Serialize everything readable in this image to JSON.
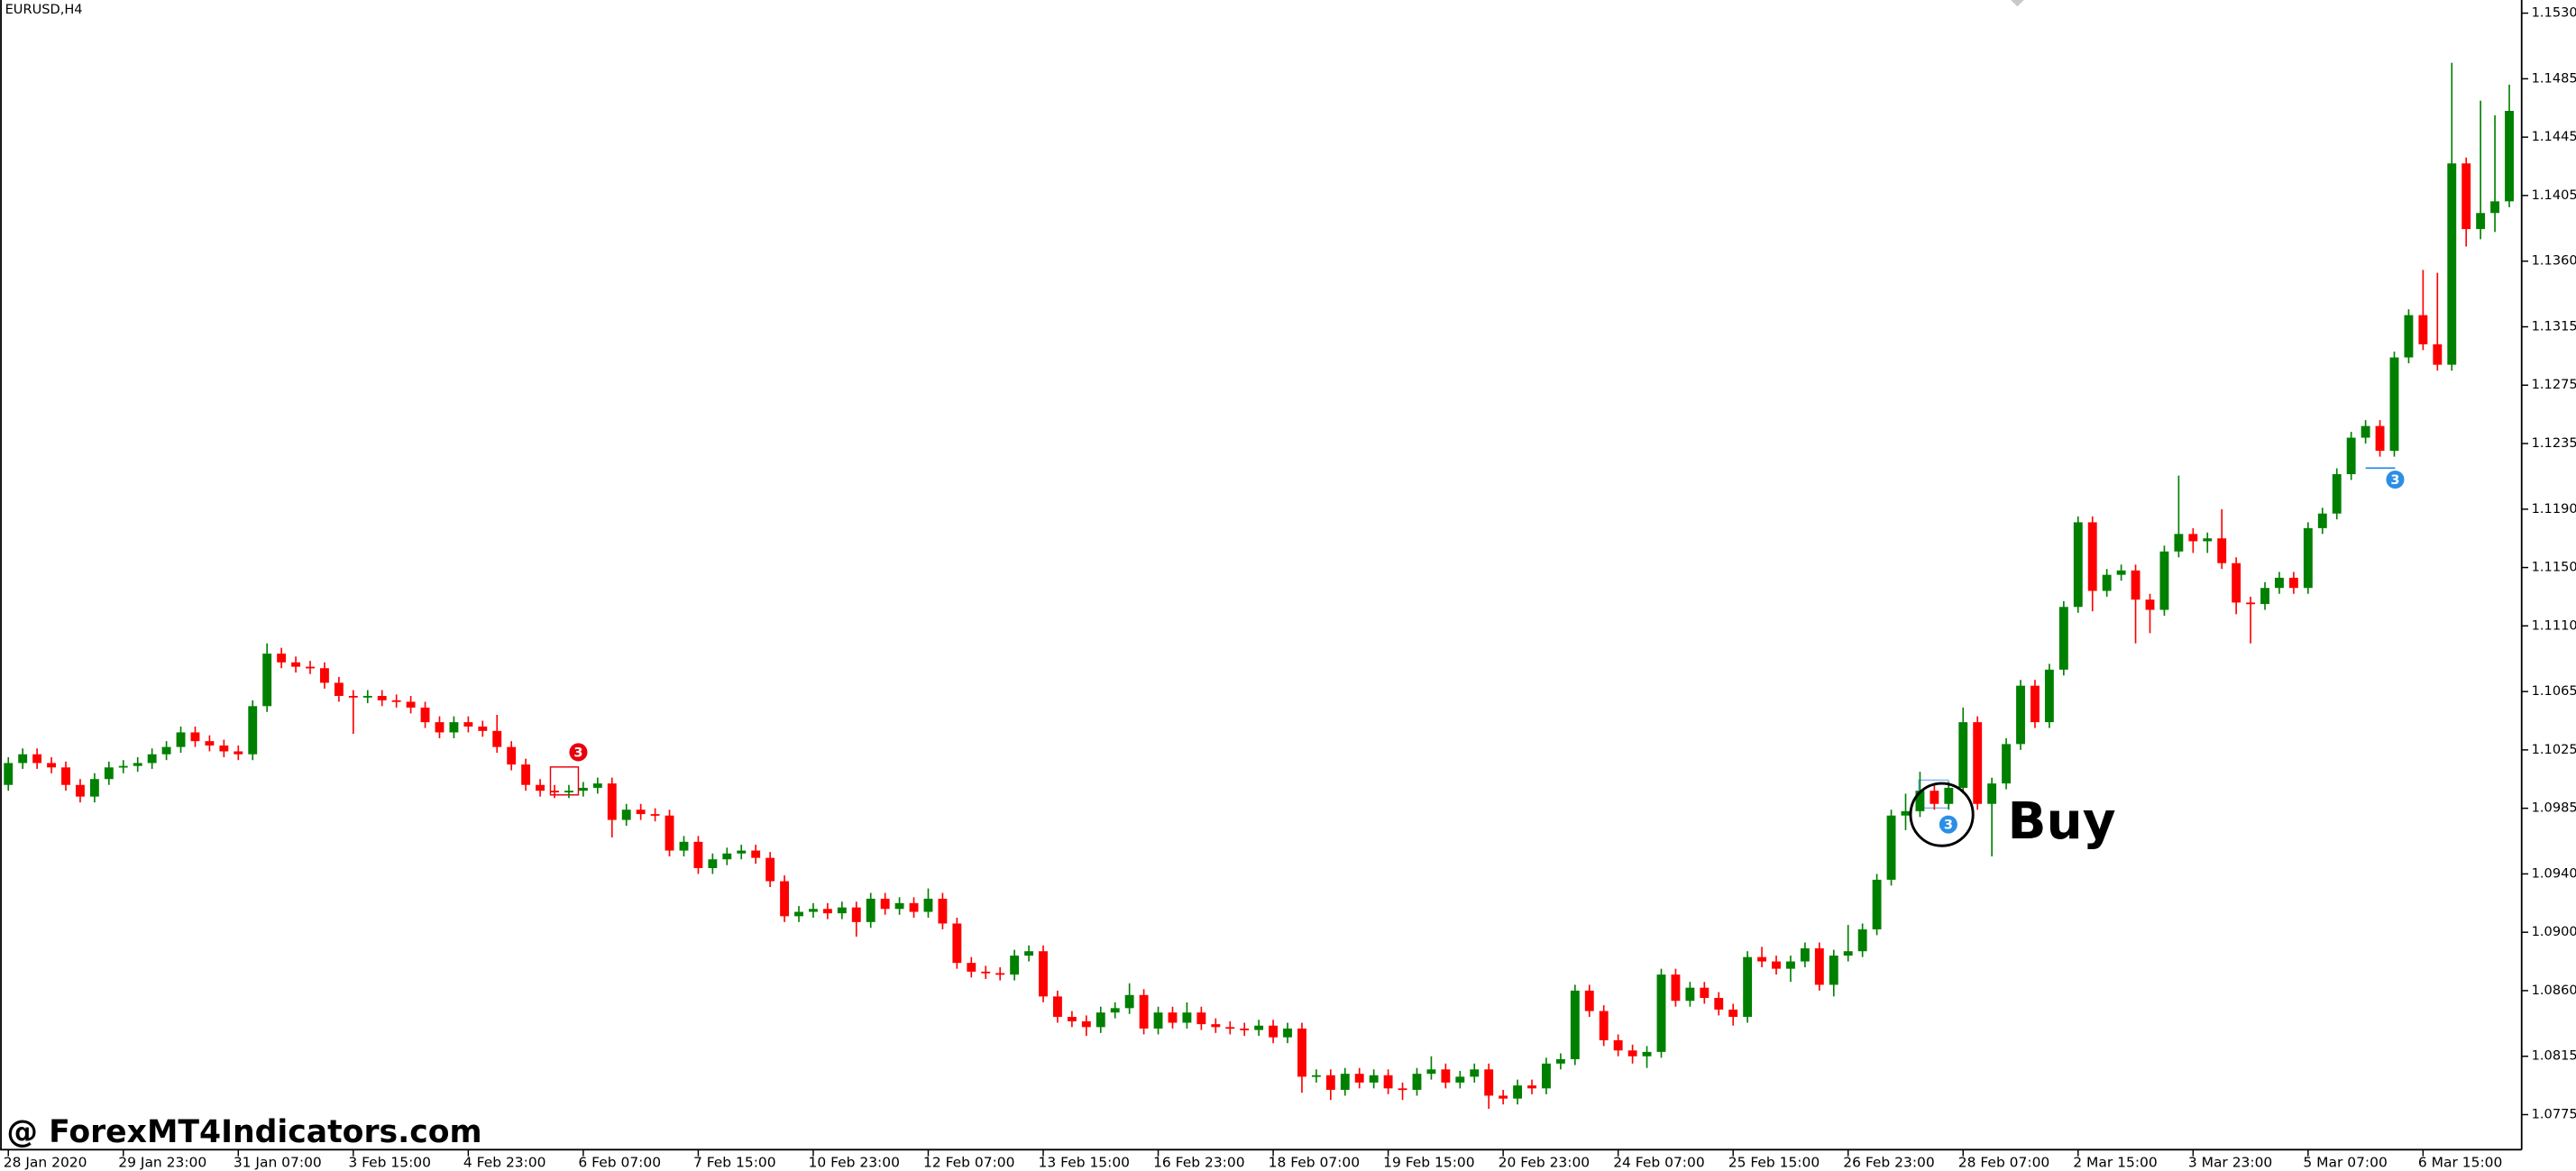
{
  "chart_data": {
    "type": "candlestick",
    "title": "EURUSD,H4",
    "open": [
      1.1001,
      1.1016,
      1.1022,
      1.1016,
      1.1013,
      1.1001,
      1.0993,
      1.1005,
      1.1013,
      1.1014,
      1.1016,
      1.1022,
      1.1027,
      1.1037,
      1.1031,
      1.1028,
      1.1024,
      1.1022,
      1.1055,
      1.1091,
      1.1085,
      1.1082,
      1.1081,
      1.1071,
      1.1062,
      1.1061,
      1.1062,
      1.1059,
      1.1058,
      1.1054,
      1.1044,
      1.1037,
      1.1044,
      1.1041,
      1.1038,
      1.1027,
      1.1015,
      1.1001,
      1.0997,
      1.0996,
      1.0997,
      1.0999,
      1.1002,
      1.0977,
      1.0984,
      1.0981,
      1.098,
      1.0956,
      1.0962,
      1.0944,
      1.095,
      1.0954,
      1.0956,
      1.0951,
      1.0935,
      1.0911,
      1.0914,
      1.0916,
      1.0913,
      1.0917,
      1.0907,
      1.0923,
      1.0916,
      1.092,
      1.0914,
      1.0923,
      1.0906,
      1.0879,
      1.0873,
      1.0872,
      1.0871,
      1.0884,
      1.0887,
      1.0856,
      1.0842,
      1.0839,
      1.0835,
      1.0845,
      1.0848,
      1.0857,
      1.0834,
      1.0845,
      1.0838,
      1.0845,
      1.0837,
      1.0835,
      1.0834,
      1.0833,
      1.0836,
      1.0828,
      1.0834,
      1.0801,
      1.0802,
      1.0792,
      1.0803,
      1.0797,
      1.0802,
      1.0793,
      1.0792,
      1.0803,
      1.0806,
      1.0797,
      1.0801,
      1.0806,
      1.0788,
      1.0786,
      1.0795,
      1.0793,
      1.081,
      1.0813,
      1.086,
      1.0846,
      1.0826,
      1.0819,
      1.0815,
      1.0818,
      1.0871,
      1.0853,
      1.0862,
      1.0855,
      1.0847,
      1.0842,
      1.0883,
      1.088,
      1.0875,
      1.088,
      1.0889,
      1.0864,
      1.0884,
      1.0887,
      1.0902,
      1.0936,
      1.098,
      1.0983,
      1.0997,
      1.0988,
      1.0999,
      1.1044,
      1.0988,
      1.1002,
      1.1029,
      1.1069,
      1.1044,
      1.108,
      1.1123,
      1.1181,
      1.1134,
      1.1145,
      1.1148,
      1.1128,
      1.1121,
      1.1161,
      1.1173,
      1.1168,
      1.117,
      1.1153,
      1.1126,
      1.1125,
      1.1136,
      1.1143,
      1.1136,
      1.1177,
      1.1187,
      1.1214,
      1.1239,
      1.1247,
      1.123,
      1.1294,
      1.1323,
      1.1303,
      1.1289,
      1.1427,
      1.1382,
      1.1393,
      1.1401
    ],
    "high": [
      1.102,
      1.1026,
      1.1026,
      1.102,
      1.1017,
      1.1005,
      1.1009,
      1.1017,
      1.1018,
      1.102,
      1.1026,
      1.1031,
      1.1041,
      1.1041,
      1.1035,
      1.1032,
      1.1028,
      1.1059,
      1.1098,
      1.1095,
      1.1089,
      1.1086,
      1.1085,
      1.1075,
      1.1066,
      1.1066,
      1.1066,
      1.1063,
      1.1062,
      1.1058,
      1.1048,
      1.1048,
      1.1048,
      1.1045,
      1.1049,
      1.1031,
      1.1019,
      1.1005,
      1.1001,
      1.1001,
      1.1003,
      1.1006,
      1.1006,
      1.0988,
      1.0988,
      1.0985,
      1.0984,
      1.0966,
      1.0966,
      1.0954,
      1.0958,
      1.096,
      1.096,
      1.0955,
      1.0939,
      1.0918,
      1.092,
      1.092,
      1.0921,
      1.0921,
      1.0927,
      1.0927,
      1.0924,
      1.0924,
      1.093,
      1.0927,
      1.091,
      1.0883,
      1.0877,
      1.0876,
      1.0888,
      1.0891,
      1.0891,
      1.086,
      1.0846,
      1.0843,
      1.0849,
      1.0852,
      1.0865,
      1.0861,
      1.0849,
      1.0849,
      1.0852,
      1.0849,
      1.0841,
      1.0839,
      1.0838,
      1.084,
      1.084,
      1.0838,
      1.0838,
      1.0806,
      1.0806,
      1.0807,
      1.0807,
      1.0806,
      1.0806,
      1.0797,
      1.0807,
      1.0815,
      1.081,
      1.0805,
      1.081,
      1.081,
      1.0792,
      1.0799,
      1.0799,
      1.0814,
      1.0817,
      1.0864,
      1.0864,
      1.085,
      1.083,
      1.0823,
      1.0822,
      1.0875,
      1.0875,
      1.0866,
      1.0866,
      1.0859,
      1.0851,
      1.0887,
      1.089,
      1.0884,
      1.0884,
      1.0893,
      1.0893,
      1.0888,
      1.0905,
      1.0906,
      1.094,
      1.0984,
      1.0995,
      1.101,
      1.1001,
      1.1003,
      1.1054,
      1.1048,
      1.1006,
      1.1033,
      1.1073,
      1.1073,
      1.1084,
      1.1127,
      1.1185,
      1.1185,
      1.1149,
      1.1152,
      1.1152,
      1.1132,
      1.1165,
      1.1213,
      1.1177,
      1.1174,
      1.119,
      1.1157,
      1.113,
      1.114,
      1.1147,
      1.1147,
      1.1181,
      1.1191,
      1.1218,
      1.1243,
      1.1251,
      1.1251,
      1.1298,
      1.1327,
      1.1354,
      1.1352,
      1.1496,
      1.1431,
      1.147,
      1.146,
      1.1481
    ],
    "low": [
      1.0997,
      1.1012,
      1.1012,
      1.1009,
      1.0997,
      1.0989,
      1.0989,
      1.1001,
      1.1009,
      1.101,
      1.1012,
      1.1018,
      1.1023,
      1.1027,
      1.1024,
      1.102,
      1.1018,
      1.1018,
      1.1051,
      1.1081,
      1.1078,
      1.1077,
      1.1067,
      1.1058,
      1.1036,
      1.1057,
      1.1055,
      1.1054,
      1.105,
      1.104,
      1.1033,
      1.1033,
      1.1037,
      1.1034,
      1.1023,
      1.1011,
      1.0997,
      1.0993,
      1.0992,
      1.0992,
      1.0993,
      1.0995,
      1.0965,
      1.0973,
      1.0977,
      1.0976,
      1.0952,
      1.0952,
      1.094,
      1.094,
      1.0946,
      1.095,
      1.0947,
      1.0931,
      1.0907,
      1.0907,
      1.091,
      1.0909,
      1.0909,
      1.0897,
      1.0903,
      1.0912,
      1.0912,
      1.091,
      1.091,
      1.0902,
      1.0875,
      1.0869,
      1.0868,
      1.0867,
      1.0867,
      1.088,
      1.0852,
      1.0838,
      1.0835,
      1.0829,
      1.0831,
      1.0841,
      1.0844,
      1.083,
      1.083,
      1.0834,
      1.0834,
      1.0833,
      1.0831,
      1.083,
      1.0829,
      1.0829,
      1.0824,
      1.0824,
      1.079,
      1.0797,
      1.0785,
      1.0788,
      1.0793,
      1.0793,
      1.0789,
      1.0785,
      1.0788,
      1.0799,
      1.0793,
      1.0793,
      1.0797,
      1.0779,
      1.0782,
      1.0782,
      1.0789,
      1.0789,
      1.0806,
      1.0809,
      1.0842,
      1.0822,
      1.0815,
      1.081,
      1.0807,
      1.0814,
      1.0849,
      1.0849,
      1.0851,
      1.0843,
      1.0836,
      1.0838,
      1.0876,
      1.0871,
      1.0866,
      1.0876,
      1.086,
      1.0856,
      1.088,
      1.0883,
      1.0898,
      1.0932,
      1.097,
      1.0979,
      1.0984,
      1.0984,
      1.0995,
      1.0984,
      1.0952,
      1.0998,
      1.1025,
      1.104,
      1.104,
      1.1076,
      1.1119,
      1.112,
      1.113,
      1.1141,
      1.1098,
      1.1105,
      1.1117,
      1.1157,
      1.116,
      1.116,
      1.1149,
      1.1118,
      1.1098,
      1.1121,
      1.1132,
      1.1132,
      1.1132,
      1.1173,
      1.1183,
      1.121,
      1.1235,
      1.1226,
      1.1226,
      1.129,
      1.1299,
      1.1285,
      1.1285,
      1.137,
      1.1375,
      1.138,
      1.1397
    ],
    "close": [
      1.1016,
      1.1022,
      1.1016,
      1.1013,
      1.1001,
      1.0993,
      1.1005,
      1.1013,
      1.1014,
      1.1016,
      1.1022,
      1.1027,
      1.1037,
      1.1031,
      1.1028,
      1.1024,
      1.1022,
      1.1055,
      1.1091,
      1.1085,
      1.1082,
      1.1081,
      1.1071,
      1.1062,
      1.1061,
      1.1062,
      1.1059,
      1.1058,
      1.1054,
      1.1044,
      1.1037,
      1.1044,
      1.1041,
      1.1038,
      1.1027,
      1.1015,
      1.1001,
      1.0997,
      1.0996,
      1.0997,
      1.0999,
      1.1002,
      1.0977,
      1.0984,
      1.0981,
      1.098,
      1.0956,
      1.0962,
      1.0944,
      1.095,
      1.0954,
      1.0956,
      1.0951,
      1.0935,
      1.0911,
      1.0914,
      1.0916,
      1.0913,
      1.0917,
      1.0907,
      1.0923,
      1.0916,
      1.092,
      1.0914,
      1.0923,
      1.0906,
      1.0879,
      1.0873,
      1.0872,
      1.0871,
      1.0884,
      1.0887,
      1.0856,
      1.0842,
      1.0839,
      1.0835,
      1.0845,
      1.0848,
      1.0857,
      1.0834,
      1.0845,
      1.0838,
      1.0845,
      1.0837,
      1.0835,
      1.0834,
      1.0833,
      1.0836,
      1.0828,
      1.0834,
      1.0801,
      1.0802,
      1.0792,
      1.0803,
      1.0797,
      1.0802,
      1.0793,
      1.0792,
      1.0803,
      1.0806,
      1.0797,
      1.0801,
      1.0806,
      1.0788,
      1.0786,
      1.0795,
      1.0793,
      1.081,
      1.0813,
      1.086,
      1.0846,
      1.0826,
      1.0819,
      1.0815,
      1.0818,
      1.0871,
      1.0853,
      1.0862,
      1.0855,
      1.0847,
      1.0842,
      1.0883,
      1.088,
      1.0875,
      1.088,
      1.0889,
      1.0864,
      1.0884,
      1.0887,
      1.0902,
      1.0936,
      1.098,
      1.0983,
      1.0997,
      1.0988,
      1.0999,
      1.1044,
      1.0988,
      1.1002,
      1.1029,
      1.1069,
      1.1044,
      1.108,
      1.1123,
      1.1181,
      1.1134,
      1.1145,
      1.1148,
      1.1128,
      1.1121,
      1.1161,
      1.1173,
      1.1168,
      1.117,
      1.1153,
      1.1126,
      1.1125,
      1.1136,
      1.1143,
      1.1136,
      1.1177,
      1.1187,
      1.1214,
      1.1239,
      1.1247,
      1.123,
      1.1294,
      1.1323,
      1.1303,
      1.1289,
      1.1427,
      1.1382,
      1.1393,
      1.1401,
      1.1463
    ],
    "up_color": "#008000",
    "down_color": "#ff0000",
    "xlim": [
      -0.57,
      174.86
    ],
    "ylim": [
      1.0751,
      1.1539
    ],
    "xticks": [
      {
        "value": 0,
        "label": "28 Jan 2020"
      },
      {
        "value": 8,
        "label": "29 Jan 23:00"
      },
      {
        "value": 16,
        "label": "31 Jan 07:00"
      },
      {
        "value": 24,
        "label": "3 Feb 15:00"
      },
      {
        "value": 32,
        "label": "4 Feb 23:00"
      },
      {
        "value": 40,
        "label": "6 Feb 07:00"
      },
      {
        "value": 48,
        "label": "7 Feb 15:00"
      },
      {
        "value": 56,
        "label": "10 Feb 23:00"
      },
      {
        "value": 64,
        "label": "12 Feb 07:00"
      },
      {
        "value": 72,
        "label": "13 Feb 15:00"
      },
      {
        "value": 80,
        "label": "16 Feb 23:00"
      },
      {
        "value": 88,
        "label": "18 Feb 07:00"
      },
      {
        "value": 96,
        "label": "19 Feb 15:00"
      },
      {
        "value": 104,
        "label": "20 Feb 23:00"
      },
      {
        "value": 112,
        "label": "24 Feb 07:00"
      },
      {
        "value": 120,
        "label": "25 Feb 15:00"
      },
      {
        "value": 128,
        "label": "26 Feb 23:00"
      },
      {
        "value": 136,
        "label": "28 Feb 07:00"
      },
      {
        "value": 144,
        "label": "2 Mar 15:00"
      },
      {
        "value": 152,
        "label": "3 Mar 23:00"
      },
      {
        "value": 160,
        "label": "5 Mar 07:00"
      },
      {
        "value": 168,
        "label": "6 Mar 15:00"
      }
    ],
    "yticks": [
      {
        "value": 1.153,
        "label": "1.1530"
      },
      1.1485,
      1.1445,
      1.1405,
      {
        "value": 1.136,
        "label": "1.1360"
      },
      1.1315,
      1.1275,
      1.1235,
      {
        "value": 1.119,
        "label": "1.1190"
      },
      {
        "value": 1.115,
        "label": "1.1150"
      },
      {
        "value": 1.111,
        "label": "1.1110"
      },
      1.1065,
      1.1025,
      1.0985,
      {
        "value": 1.094,
        "label": "1.0940"
      },
      {
        "value": 1.09,
        "label": "1.0900"
      },
      {
        "value": 1.086,
        "label": "1.0860"
      },
      1.0815,
      1.0775
    ],
    "grid": false,
    "annotations": [
      {
        "text": "Buy"
      }
    ],
    "markers": [
      {
        "label": "3",
        "color": "#e8000b"
      },
      {
        "label": "3",
        "color": "#2b8fe6"
      },
      {
        "label": "3",
        "color": "#2b8fe6"
      }
    ]
  },
  "watermark": "@ ForexMT4Indicators.com"
}
